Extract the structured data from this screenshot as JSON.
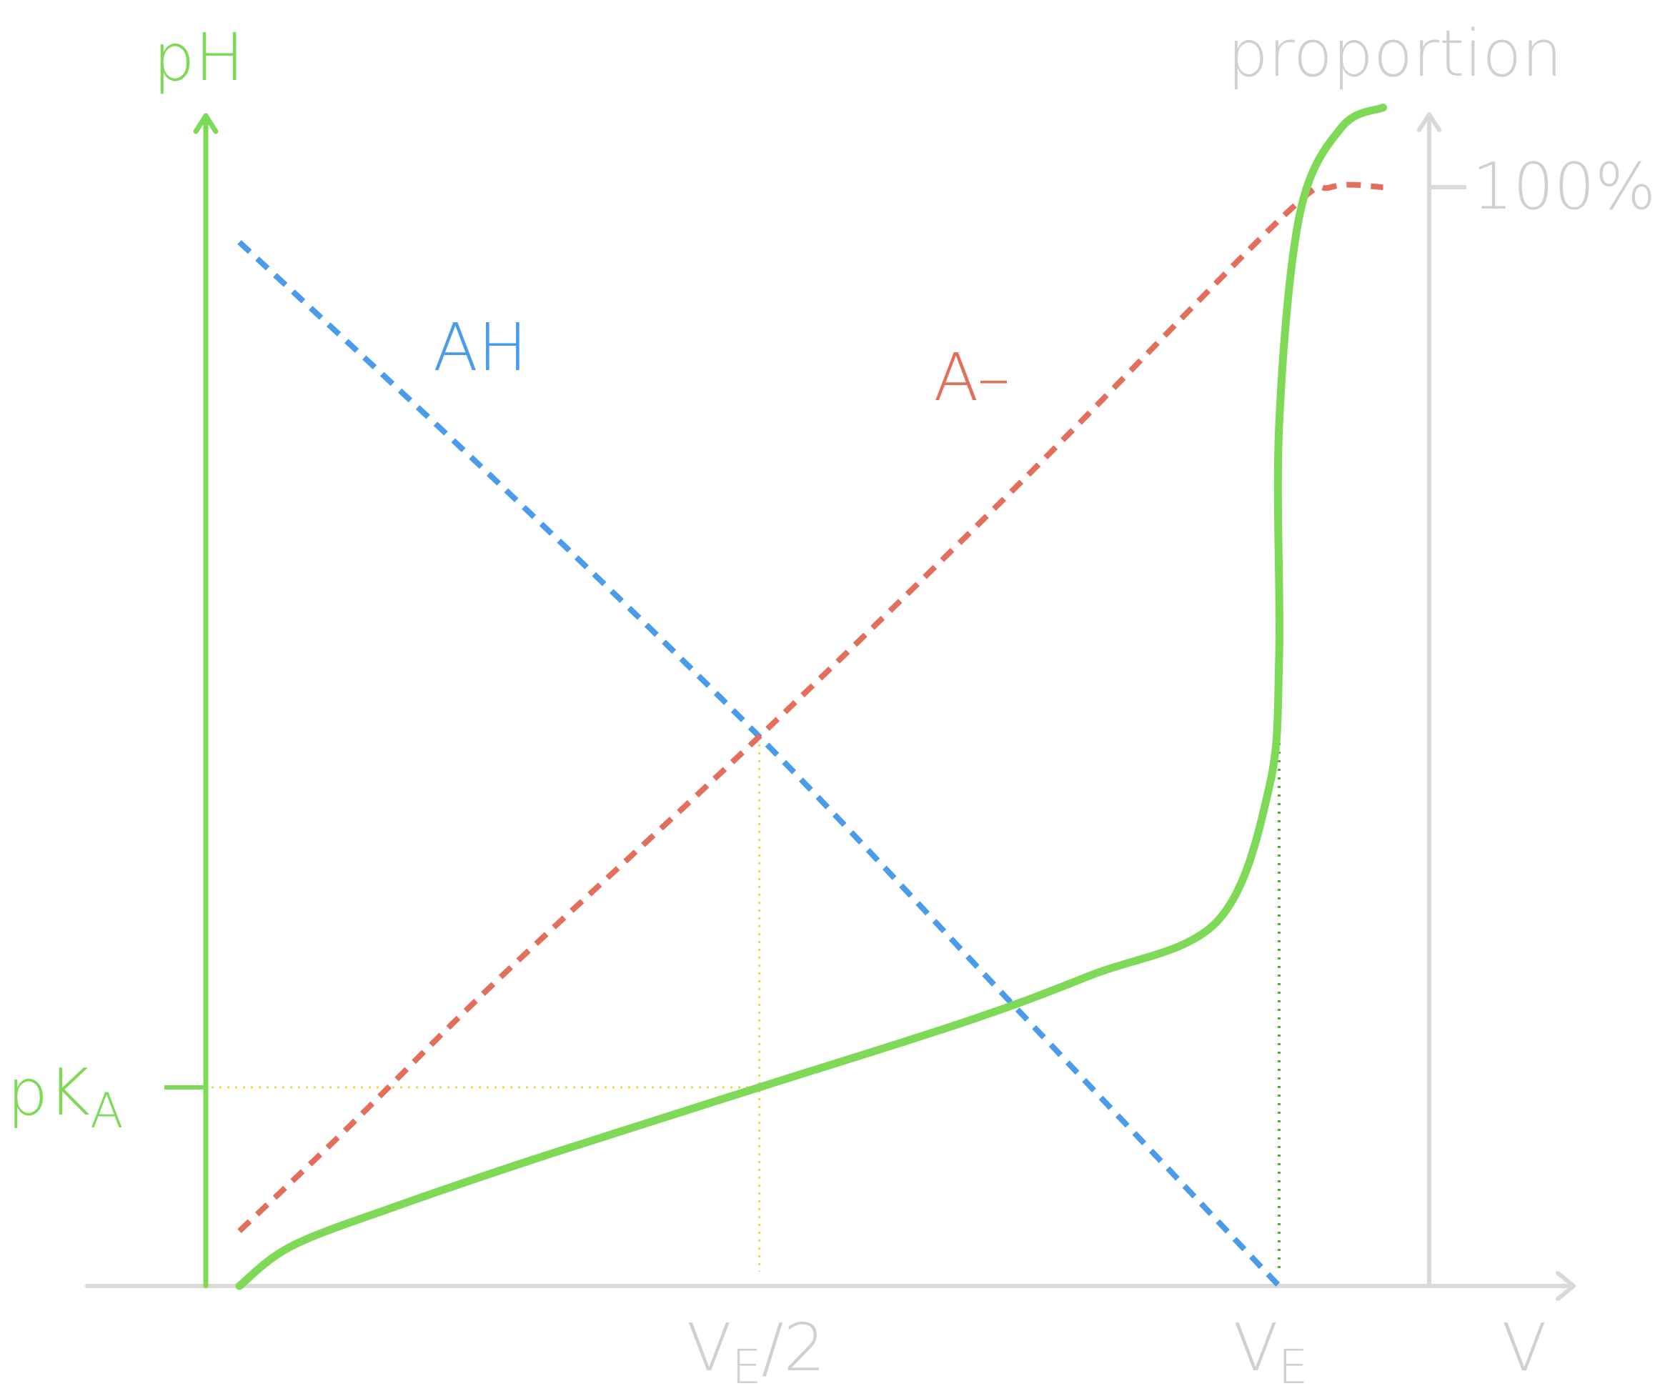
{
  "colors": {
    "ph": "#7ED957",
    "ah": "#4A9BEA",
    "a_minus": "#E36E5C",
    "axis": "#D9D9D9",
    "axis_label": "#D0D0D0",
    "guide_yellow": "#F2D64B",
    "guide_green": "#5EA83A"
  },
  "chart_data": {
    "type": "line",
    "title": "",
    "left_axis": {
      "label": "pH",
      "tick_label": "pK",
      "tick_label_sub": "A"
    },
    "right_axis": {
      "label": "proportion",
      "tick_label": "100%"
    },
    "x_axis": {
      "label": "V",
      "tick_half": {
        "main": "V",
        "sub": "E",
        "suffix": "/2"
      },
      "tick_eq": {
        "main": "V",
        "sub": "E"
      }
    },
    "series": [
      {
        "name": "AH",
        "axis": "proportion",
        "style": "dashed",
        "x": [
          0.0,
          0.25,
          0.5,
          0.75,
          1.0
        ],
        "y": [
          0.95,
          0.73,
          0.5,
          0.25,
          0.0
        ]
      },
      {
        "name": "A–",
        "axis": "proportion",
        "style": "dashed",
        "x": [
          0.0,
          0.1,
          0.25,
          0.5,
          0.75,
          1.0,
          1.05,
          1.1
        ],
        "y": [
          0.05,
          0.14,
          0.28,
          0.5,
          0.73,
          0.97,
          1.0,
          1.0
        ]
      },
      {
        "name": "pH",
        "axis": "pH",
        "style": "solid",
        "x": [
          0.0,
          0.05,
          0.15,
          0.3,
          0.5,
          0.7,
          0.82,
          0.94,
          0.99,
          1.0,
          1.0,
          1.02,
          1.06,
          1.1
        ],
        "y": [
          0.0,
          0.06,
          0.12,
          0.2,
          0.3,
          0.4,
          0.47,
          0.55,
          0.75,
          0.95,
          1.3,
          1.62,
          1.75,
          1.78
        ]
      }
    ],
    "annotations": {
      "pKa_at_x": 0.5,
      "pKa_value": 0.3,
      "equivalence_x": 1.0
    }
  }
}
